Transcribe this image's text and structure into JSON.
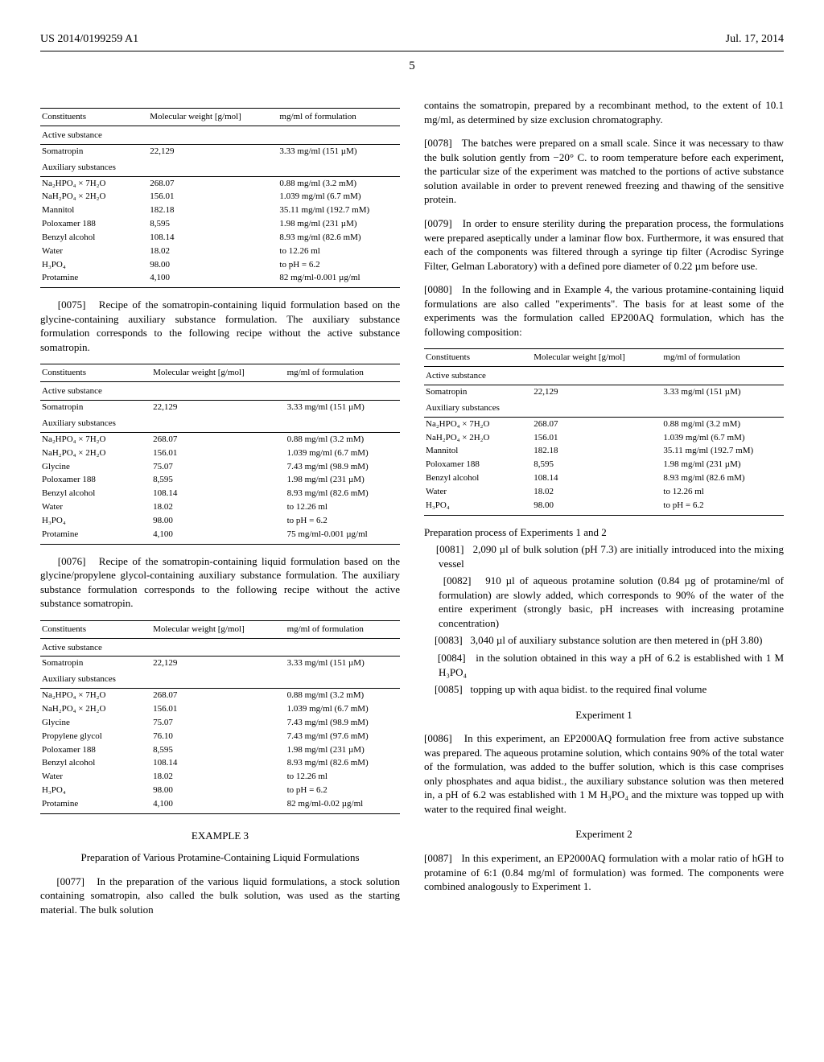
{
  "header": {
    "left": "US 2014/0199259 A1",
    "right": "Jul. 17, 2014"
  },
  "page_number": "5",
  "col_left": {
    "table1": {
      "headers": [
        "Constituents",
        "Molecular weight [g/mol]",
        "mg/ml of formulation"
      ],
      "section": "Active substance",
      "active_rows": [
        [
          "Somatropin",
          "22,129",
          "3.33 mg/ml (151 µM)"
        ],
        [
          "Auxiliary substances",
          "",
          ""
        ]
      ],
      "aux_rows": [
        [
          "Na₂HPO₄ × 7H₂O",
          "268.07",
          "0.88 mg/ml (3.2 mM)"
        ],
        [
          "NaH₂PO₄ × 2H₂O",
          "156.01",
          "1.039 mg/ml (6.7 mM)"
        ],
        [
          "Mannitol",
          "182.18",
          "35.11 mg/ml (192.7 mM)"
        ],
        [
          "Poloxamer 188",
          "8,595",
          "1.98 mg/ml (231 µM)"
        ],
        [
          "Benzyl alcohol",
          "108.14",
          "8.93 mg/ml (82.6 mM)"
        ],
        [
          "Water",
          "18.02",
          "to 12.26 ml"
        ],
        [
          "H₃PO₄",
          "98.00",
          "to pH = 6.2"
        ],
        [
          "Protamine",
          "4,100",
          "82 mg/ml-0.001 µg/ml"
        ]
      ]
    },
    "para1": {
      "num": "[0075]",
      "text": "Recipe of the somatropin-containing liquid formulation based on the glycine-containing auxiliary substance formulation. The auxiliary substance formulation corresponds to the following recipe without the active substance somatropin."
    },
    "table2": {
      "headers": [
        "Constituents",
        "Molecular weight [g/mol]",
        "mg/ml of formulation"
      ],
      "section": "Active substance",
      "active_rows": [
        [
          "Somatropin",
          "22,129",
          "3.33 mg/ml (151 µM)"
        ],
        [
          "Auxiliary substances",
          "",
          ""
        ]
      ],
      "aux_rows": [
        [
          "Na₂HPO₄ × 7H₂O",
          "268.07",
          "0.88 mg/ml (3.2 mM)"
        ],
        [
          "NaH₂PO₄ × 2H₂O",
          "156.01",
          "1.039 mg/ml (6.7 mM)"
        ],
        [
          "Glycine",
          "75.07",
          "7.43 mg/ml (98.9 mM)"
        ],
        [
          "Poloxamer 188",
          "8,595",
          "1.98 mg/ml (231 µM)"
        ],
        [
          "Benzyl alcohol",
          "108.14",
          "8.93 mg/ml (82.6 mM)"
        ],
        [
          "Water",
          "18.02",
          "to 12.26 ml"
        ],
        [
          "H₃PO₄",
          "98.00",
          "to pH = 6.2"
        ],
        [
          "Protamine",
          "4,100",
          "75 mg/ml-0.001 µg/ml"
        ]
      ]
    },
    "para2": {
      "num": "[0076]",
      "text": "Recipe of the somatropin-containing liquid formulation based on the glycine/propylene glycol-containing auxiliary substance formulation. The auxiliary substance formulation corresponds to the following recipe without the active substance somatropin."
    },
    "table3": {
      "headers": [
        "Constituents",
        "Molecular weight [g/mol]",
        "mg/ml of formulation"
      ],
      "section": "Active substance",
      "active_rows": [
        [
          "Somatropin",
          "22,129",
          "3.33 mg/ml (151 µM)"
        ],
        [
          "Auxiliary substances",
          "",
          ""
        ]
      ],
      "aux_rows": [
        [
          "Na₂HPO₄ × 7H₂O",
          "268.07",
          "0.88 mg/ml (3.2 mM)"
        ],
        [
          "NaH₂PO₄ × 2H₂O",
          "156.01",
          "1.039 mg/ml (6.7 mM)"
        ],
        [
          "Glycine",
          "75.07",
          "7.43 mg/ml (98.9 mM)"
        ],
        [
          "Propylene glycol",
          "76.10",
          "7.43 mg/ml (97.6 mM)"
        ],
        [
          "Poloxamer 188",
          "8,595",
          "1.98 mg/ml (231 µM)"
        ],
        [
          "Benzyl alcohol",
          "108.14",
          "8.93 mg/ml (82.6 mM)"
        ],
        [
          "Water",
          "18.02",
          "to 12.26 ml"
        ],
        [
          "H₃PO₄",
          "98.00",
          "to pH = 6.2"
        ],
        [
          "Protamine",
          "4,100",
          "82 mg/ml-0.02 µg/ml"
        ]
      ]
    },
    "example_heading": "EXAMPLE 3",
    "example_sub": "Preparation of Various Protamine-Containing Liquid Formulations",
    "para3": {
      "num": "[0077]",
      "text": "In the preparation of the various liquid formulations, a stock solution containing somatropin, also called the bulk solution, was used as the starting material. The bulk solution"
    }
  },
  "col_right": {
    "para_top": "contains the somatropin, prepared by a recombinant method, to the extent of 10.1 mg/ml, as determined by size exclusion chromatography.",
    "para4": {
      "num": "[0078]",
      "text": "The batches were prepared on a small scale. Since it was necessary to thaw the bulk solution gently from −20° C. to room temperature before each experiment, the particular size of the experiment was matched to the portions of active substance solution available in order to prevent renewed freezing and thawing of the sensitive protein."
    },
    "para5": {
      "num": "[0079]",
      "text": "In order to ensure sterility during the preparation process, the formulations were prepared aseptically under a laminar flow box. Furthermore, it was ensured that each of the components was filtered through a syringe tip filter (Acrodisc Syringe Filter, Gelman Laboratory) with a defined pore diameter of 0.22 µm before use."
    },
    "para6": {
      "num": "[0080]",
      "text": "In the following and in Example 4, the various protamine-containing liquid formulations are also called \"experiments\". The basis for at least some of the experiments was the formulation called EP200AQ formulation, which has the following composition:"
    },
    "table4": {
      "headers": [
        "Constituents",
        "Molecular weight [g/mol]",
        "mg/ml of formulation"
      ],
      "section": "Active substance",
      "active_rows": [
        [
          "Somatropin",
          "22,129",
          "3.33 mg/ml (151 µM)"
        ],
        [
          "Auxiliary substances",
          "",
          ""
        ]
      ],
      "aux_rows": [
        [
          "Na₂HPO₄ × 7H₂O",
          "268.07",
          "0.88 mg/ml (3.2 mM)"
        ],
        [
          "NaH₂PO₄ × 2H₂O",
          "156.01",
          "1.039 mg/ml (6.7 mM)"
        ],
        [
          "Mannitol",
          "182.18",
          "35.11 mg/ml (192.7 mM)"
        ],
        [
          "Poloxamer 188",
          "8,595",
          "1.98 mg/ml (231 µM)"
        ],
        [
          "Benzyl alcohol",
          "108.14",
          "8.93 mg/ml (82.6 mM)"
        ],
        [
          "Water",
          "18.02",
          "to 12.26 ml"
        ],
        [
          "H₃PO₄",
          "98.00",
          "to pH = 6.2"
        ]
      ]
    },
    "prep_heading": "Preparation process of Experiments 1 and 2",
    "bullets": [
      {
        "num": "[0081]",
        "text": "2,090 µl of bulk solution (pH 7.3) are initially introduced into the mixing vessel"
      },
      {
        "num": "[0082]",
        "text": "910 µl of aqueous protamine solution (0.84 µg of protamine/ml of formulation) are slowly added, which corresponds to 90% of the water of the entire experiment (strongly basic, pH increases with increasing protamine concentration)"
      },
      {
        "num": "[0083]",
        "text": "3,040 µl of auxiliary substance solution are then metered in (pH 3.80)"
      },
      {
        "num": "[0084]",
        "text": "in the solution obtained in this way a pH of 6.2 is established with 1 M H₃PO₄"
      },
      {
        "num": "[0085]",
        "text": "topping up with aqua bidist. to the required final volume"
      }
    ],
    "exp1_heading": "Experiment 1",
    "para7": {
      "num": "[0086]",
      "text": "In this experiment, an EP2000AQ formulation free from active substance was prepared. The aqueous protamine solution, which contains 90% of the total water of the formulation, was added to the buffer solution, which is this case comprises only phosphates and aqua bidist., the auxiliary substance solution was then metered in, a pH of 6.2 was established with 1 M H₃PO₄ and the mixture was topped up with water to the required final weight."
    },
    "exp2_heading": "Experiment 2",
    "para8": {
      "num": "[0087]",
      "text": "In this experiment, an EP2000AQ formulation with a molar ratio of hGH to protamine of 6:1 (0.84 mg/ml of formulation) was formed. The components were combined analogously to Experiment 1."
    }
  }
}
